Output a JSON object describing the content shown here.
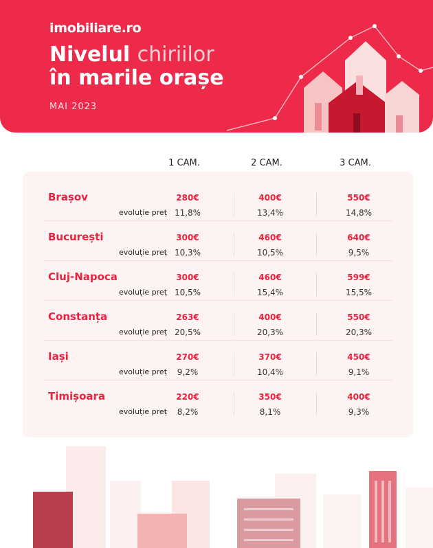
{
  "brand": "imobiliare.ro",
  "title": {
    "part1": "Nivelul ",
    "part1_hl": "chiriilor",
    "line2": "în marile orașe"
  },
  "month": "MAI 2023",
  "columns": [
    "1 CAM.",
    "2 CAM.",
    "3 CAM."
  ],
  "evolution_label": "evoluție preț",
  "colors": {
    "accent": "#ee2a4b",
    "price": "#e8233f",
    "card": "#fdf3f3"
  },
  "cities": [
    {
      "name": "Brașov",
      "prices": [
        "280€",
        "400€",
        "550€"
      ],
      "evolution": [
        "11,8%",
        "13,4%",
        "14,8%"
      ]
    },
    {
      "name": "București",
      "prices": [
        "300€",
        "460€",
        "640€"
      ],
      "evolution": [
        "10,3%",
        "10,5%",
        "9,5%"
      ]
    },
    {
      "name": "Cluj-Napoca",
      "prices": [
        "300€",
        "460€",
        "599€"
      ],
      "evolution": [
        "10,5%",
        "15,4%",
        "15,5%"
      ]
    },
    {
      "name": "Constanța",
      "prices": [
        "263€",
        "400€",
        "550€"
      ],
      "evolution": [
        "20,5%",
        "20,3%",
        "20,3%"
      ]
    },
    {
      "name": "Iași",
      "prices": [
        "270€",
        "370€",
        "450€"
      ],
      "evolution": [
        "9,2%",
        "10,4%",
        "9,1%"
      ]
    },
    {
      "name": "Timișoara",
      "prices": [
        "220€",
        "350€",
        "400€"
      ],
      "evolution": [
        "8,2%",
        "8,1%",
        "9,3%"
      ]
    }
  ]
}
